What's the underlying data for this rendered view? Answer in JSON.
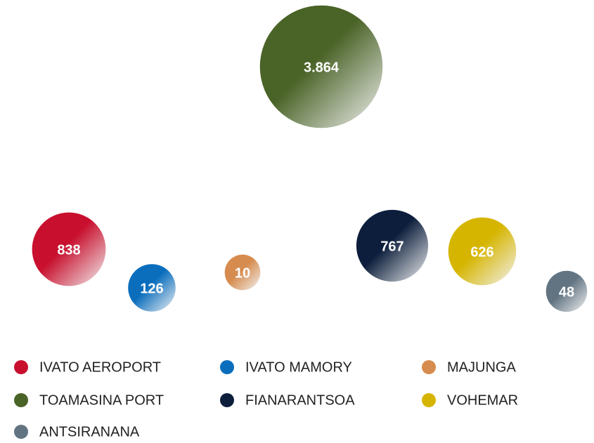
{
  "chart_data": {
    "type": "bubble",
    "categories": [
      "IVATO AEROPORT",
      "IVATO MAMORY",
      "MAJUNGA",
      "TOAMASINA PORT",
      "FIANARANTSOA",
      "VOHEMAR",
      "ANTSIRANANA"
    ],
    "values": [
      838,
      126,
      10,
      3864,
      767,
      626,
      48
    ],
    "value_labels": [
      "838",
      "126",
      "10",
      "3.864",
      "767",
      "626",
      "48"
    ],
    "colors": [
      "#c8102e",
      "#0a6ebd",
      "#d68c4e",
      "#4a6327",
      "#0c1e3c",
      "#d6b500",
      "#627482"
    ]
  }
}
